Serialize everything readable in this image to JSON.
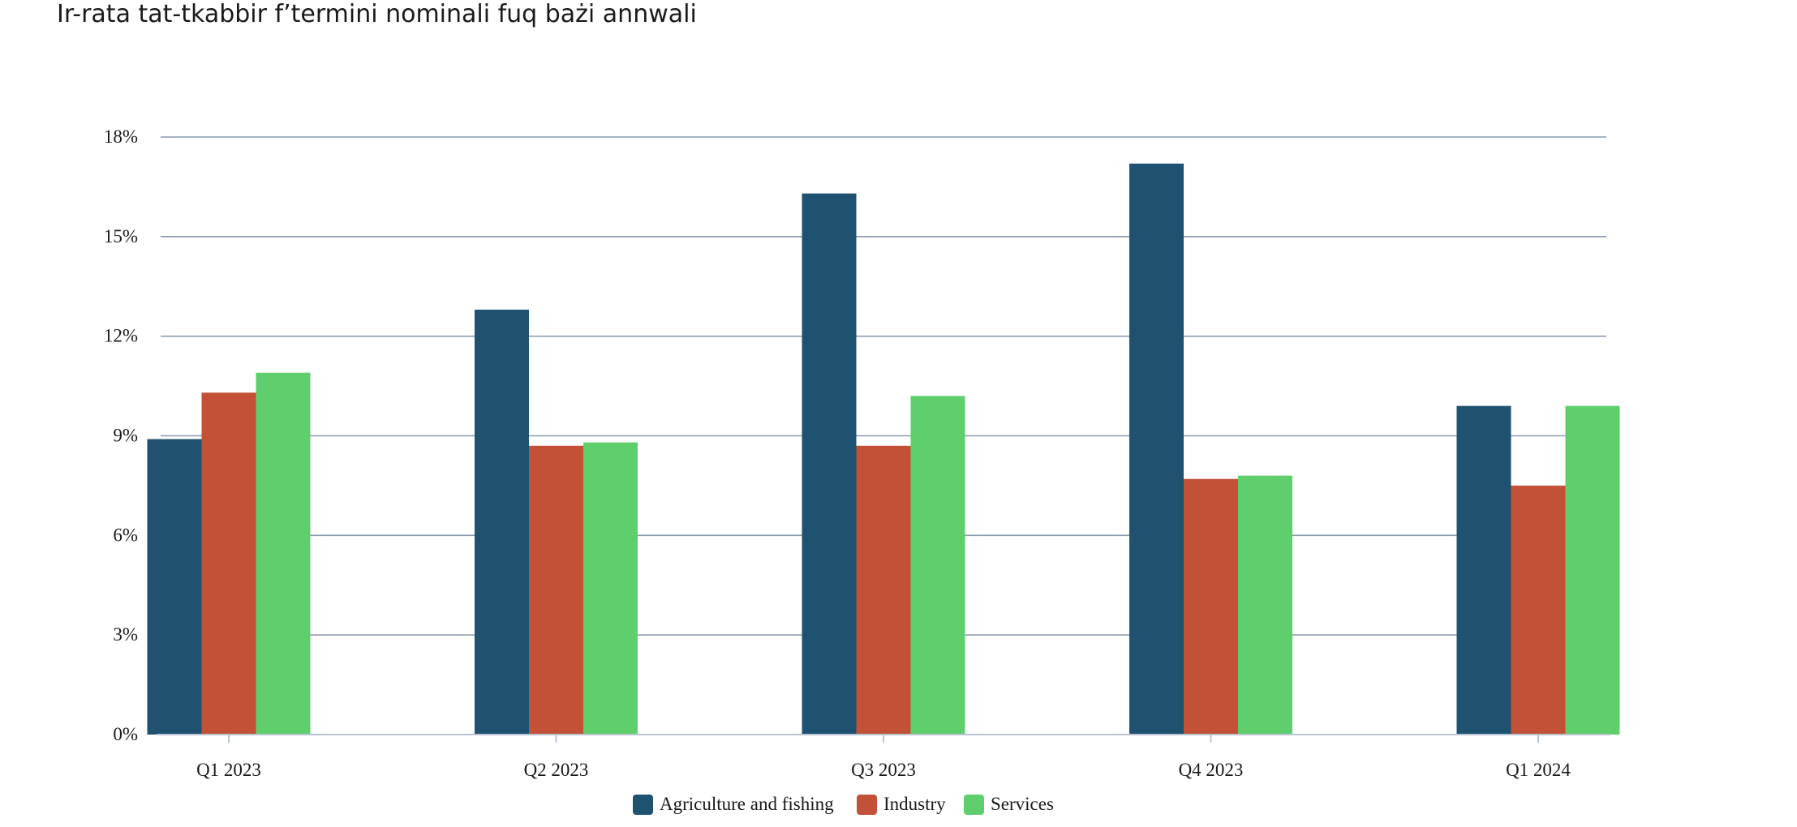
{
  "chart_data": {
    "type": "bar",
    "title": "Ir-rata tat-tkabbir f’termini nominali fuq bażi annwali",
    "categories": [
      "Q1 2023",
      "Q2 2023",
      "Q3 2023",
      "Q4 2023",
      "Q1 2024"
    ],
    "series": [
      {
        "name": "Agriculture and fishing",
        "color": "#1f5170",
        "values": [
          8.9,
          12.8,
          16.3,
          17.2,
          9.9
        ]
      },
      {
        "name": "Industry",
        "color": "#c25137",
        "values": [
          10.3,
          8.7,
          8.7,
          7.7,
          7.5
        ]
      },
      {
        "name": "Services",
        "color": "#5fcf6e",
        "values": [
          10.9,
          8.8,
          10.2,
          7.8,
          9.9
        ]
      }
    ],
    "ylim": [
      0,
      18
    ],
    "yticks": [
      "0%",
      "3%",
      "6%",
      "9%",
      "12%",
      "15%",
      "18%"
    ],
    "xlabel": "",
    "ylabel": "",
    "grid": true,
    "legend_position": "bottom"
  }
}
